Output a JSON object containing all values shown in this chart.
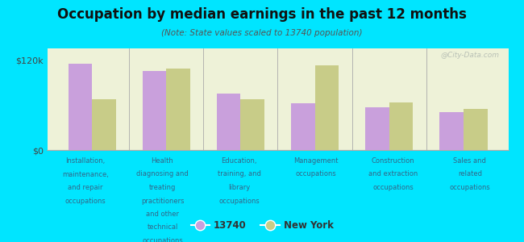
{
  "title": "Occupation by median earnings in the past 12 months",
  "subtitle": "(Note: State values scaled to 13740 population)",
  "categories": [
    "Installation,\nmaintenance,\nand repair\noccupations",
    "Health\ndiagnosing and\ntreating\npractitioners\nand other\ntechnical\noccupations",
    "Education,\ntraining, and\nlibrary\noccupations",
    "Management\noccupations",
    "Construction\nand extraction\noccupations",
    "Sales and\nrelated\noccupations"
  ],
  "values_13740": [
    115000,
    105000,
    75000,
    62000,
    57000,
    50000
  ],
  "values_ny": [
    68000,
    108000,
    68000,
    112000,
    63000,
    55000
  ],
  "color_13740": "#c9a0dc",
  "color_ny": "#c8cc88",
  "ylim": [
    0,
    135000
  ],
  "yticks": [
    0,
    120000
  ],
  "ytick_labels": [
    "$0",
    "$120k"
  ],
  "legend_label_1": "13740",
  "legend_label_2": "New York",
  "background_color": "#eef2d8",
  "outer_background": "#00e5ff",
  "watermark": "@City-Data.com"
}
